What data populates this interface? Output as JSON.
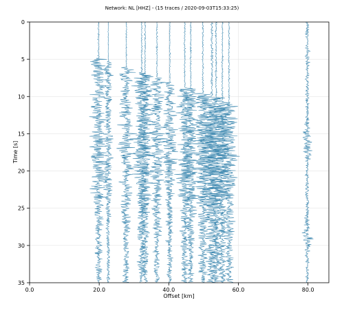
{
  "chart_data": {
    "type": "line",
    "title": "Network: NL [HHZ] - (15 traces / 2020-09-03T15:33:25)",
    "xlabel": "Offset [km]",
    "ylabel": "Time [s]",
    "xlim": [
      0,
      86
    ],
    "ylim": [
      35,
      0
    ],
    "y_inverted": true,
    "x_ticks": [
      "0.0",
      "20.0",
      "40.0",
      "60.0",
      "80.0"
    ],
    "x_tick_values": [
      0,
      20,
      40,
      60,
      80
    ],
    "y_ticks": [
      "0",
      "5",
      "10",
      "15",
      "20",
      "25",
      "30",
      "35"
    ],
    "y_tick_values": [
      0,
      5,
      10,
      15,
      20,
      25,
      30,
      35
    ],
    "grid": true,
    "legend": "none",
    "trace_color": "#3d88b0",
    "trace_count": 15,
    "series": [
      {
        "offset": 19.8,
        "amplitude": 1.0
      },
      {
        "offset": 22.6,
        "amplitude": 0.55
      },
      {
        "offset": 27.8,
        "amplitude": 0.9
      },
      {
        "offset": 32.2,
        "amplitude": 1.05
      },
      {
        "offset": 33.2,
        "amplitude": 1.0
      },
      {
        "offset": 36.6,
        "amplitude": 0.85
      },
      {
        "offset": 40.3,
        "amplitude": 0.8
      },
      {
        "offset": 44.6,
        "amplitude": 0.95
      },
      {
        "offset": 46.3,
        "amplitude": 0.9
      },
      {
        "offset": 49.8,
        "amplitude": 1.1
      },
      {
        "offset": 52.4,
        "amplitude": 1.6
      },
      {
        "offset": 53.6,
        "amplitude": 1.2
      },
      {
        "offset": 55.4,
        "amplitude": 1.0
      },
      {
        "offset": 57.3,
        "amplitude": 1.0
      },
      {
        "offset": 79.8,
        "amplitude": 0.9
      }
    ]
  }
}
